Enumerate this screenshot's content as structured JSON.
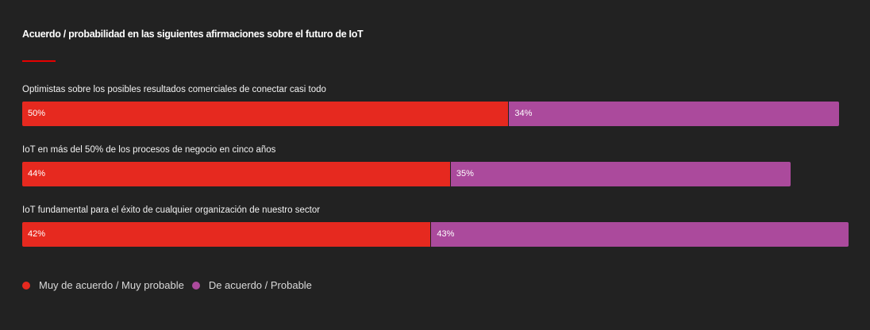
{
  "chart_data": {
    "type": "bar",
    "orientation": "horizontal",
    "stacked": true,
    "title": "Acuerdo / probabilidad en las siguientes afirmaciones sobre el futuro de IoT",
    "categories": [
      "Optimistas sobre los posibles resultados comerciales de conectar casi todo",
      "IoT en más del 50% de los procesos de negocio en cinco años",
      "IoT fundamental para el éxito de cualquier organización de nuestro sector"
    ],
    "series": [
      {
        "name": "Muy de acuerdo / Muy probable",
        "color": "#e6291f",
        "values": [
          50,
          44,
          42
        ],
        "labels": [
          "50%",
          "44%",
          "42%"
        ]
      },
      {
        "name": "De acuerdo / Probable",
        "color": "#ab4a9c",
        "values": [
          34,
          35,
          43
        ],
        "labels": [
          "34%",
          "35%",
          "43%"
        ]
      }
    ],
    "xlim": [
      0,
      85
    ],
    "grid": false,
    "legend_position": "bottom-left"
  },
  "colors": {
    "background": "#222222",
    "accent_rule": "#e60000"
  }
}
